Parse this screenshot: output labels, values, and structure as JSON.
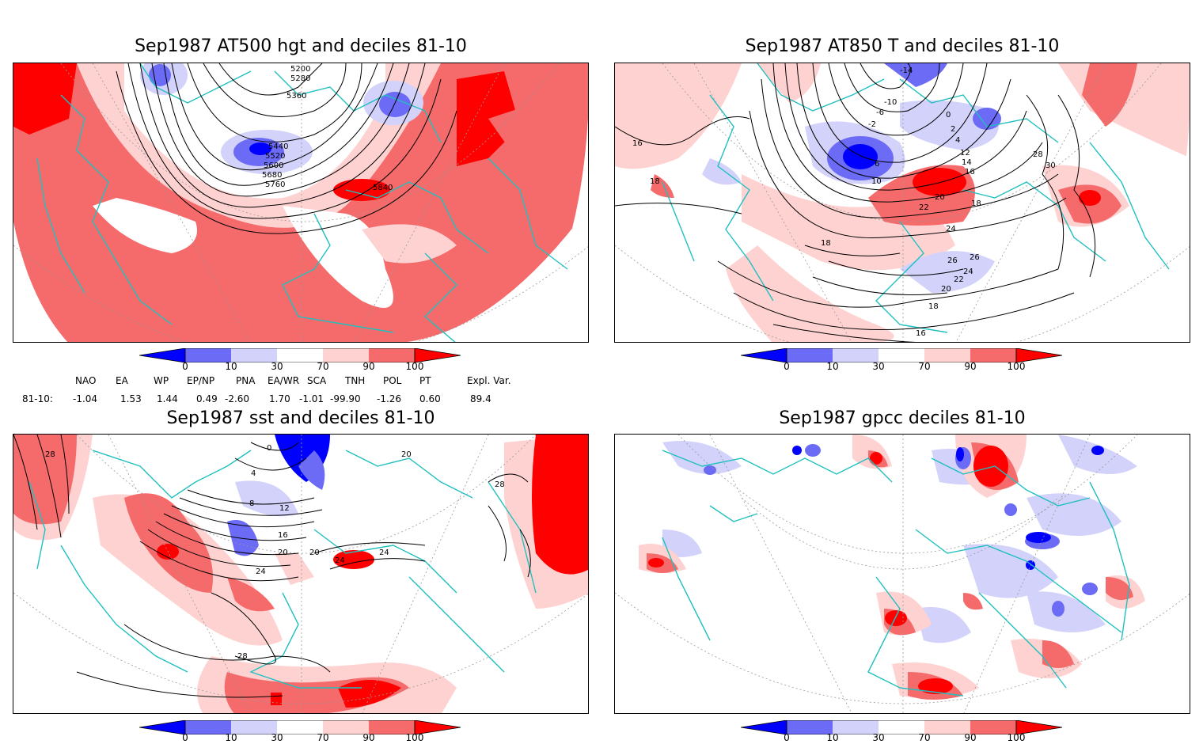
{
  "panels": [
    {
      "title": "Sep1987 AT500 hgt and deciles 81-10",
      "contour_labels": [
        "5200",
        "5280",
        "5360",
        "5440",
        "5520",
        "5600",
        "5680",
        "5760",
        "5840"
      ]
    },
    {
      "title": "Sep1987 AT850 T and deciles 81-10",
      "contour_labels": [
        "-14",
        "-10",
        "-6",
        "-2",
        "0",
        "2",
        "4",
        "6",
        "10",
        "12",
        "14",
        "16",
        "18",
        "20",
        "22",
        "24",
        "26",
        "28",
        "30",
        "16",
        "18",
        "18",
        "16",
        "18",
        "20",
        "22",
        "24",
        "26"
      ]
    },
    {
      "title": "Sep1987 sst and deciles 81-10",
      "contour_labels": [
        "0",
        "4",
        "8",
        "12",
        "16",
        "20",
        "24",
        "28",
        "28",
        "28",
        "24",
        "24",
        "20",
        "20"
      ]
    },
    {
      "title": "Sep1987 gpcc deciles 81-10",
      "contour_labels": []
    }
  ],
  "colorbar": {
    "ticks": [
      "0",
      "10",
      "30",
      "70",
      "90",
      "100"
    ],
    "colors": [
      "#0000ff",
      "#6b6bf5",
      "#d2d2fa",
      "#ffffff",
      "#ffd2d2",
      "#f56b6b",
      "#ff0000"
    ]
  },
  "indices": {
    "row_label": "81-10:",
    "headers": [
      "NAO",
      "EA",
      "WP",
      "EP/NP",
      "PNA",
      "EA/WR",
      "SCA",
      "TNH",
      "POL",
      "PT",
      "Expl. Var."
    ],
    "values": [
      "-1.04",
      "1.53",
      "1.44",
      "0.49",
      "-2.60",
      "1.70",
      "-1.01",
      "-99.90",
      "-1.26",
      "0.60",
      "89.4"
    ]
  },
  "styles": {
    "coast_color": "#20c0c0",
    "contour_color": "#000000",
    "grid_color": "#999999"
  }
}
